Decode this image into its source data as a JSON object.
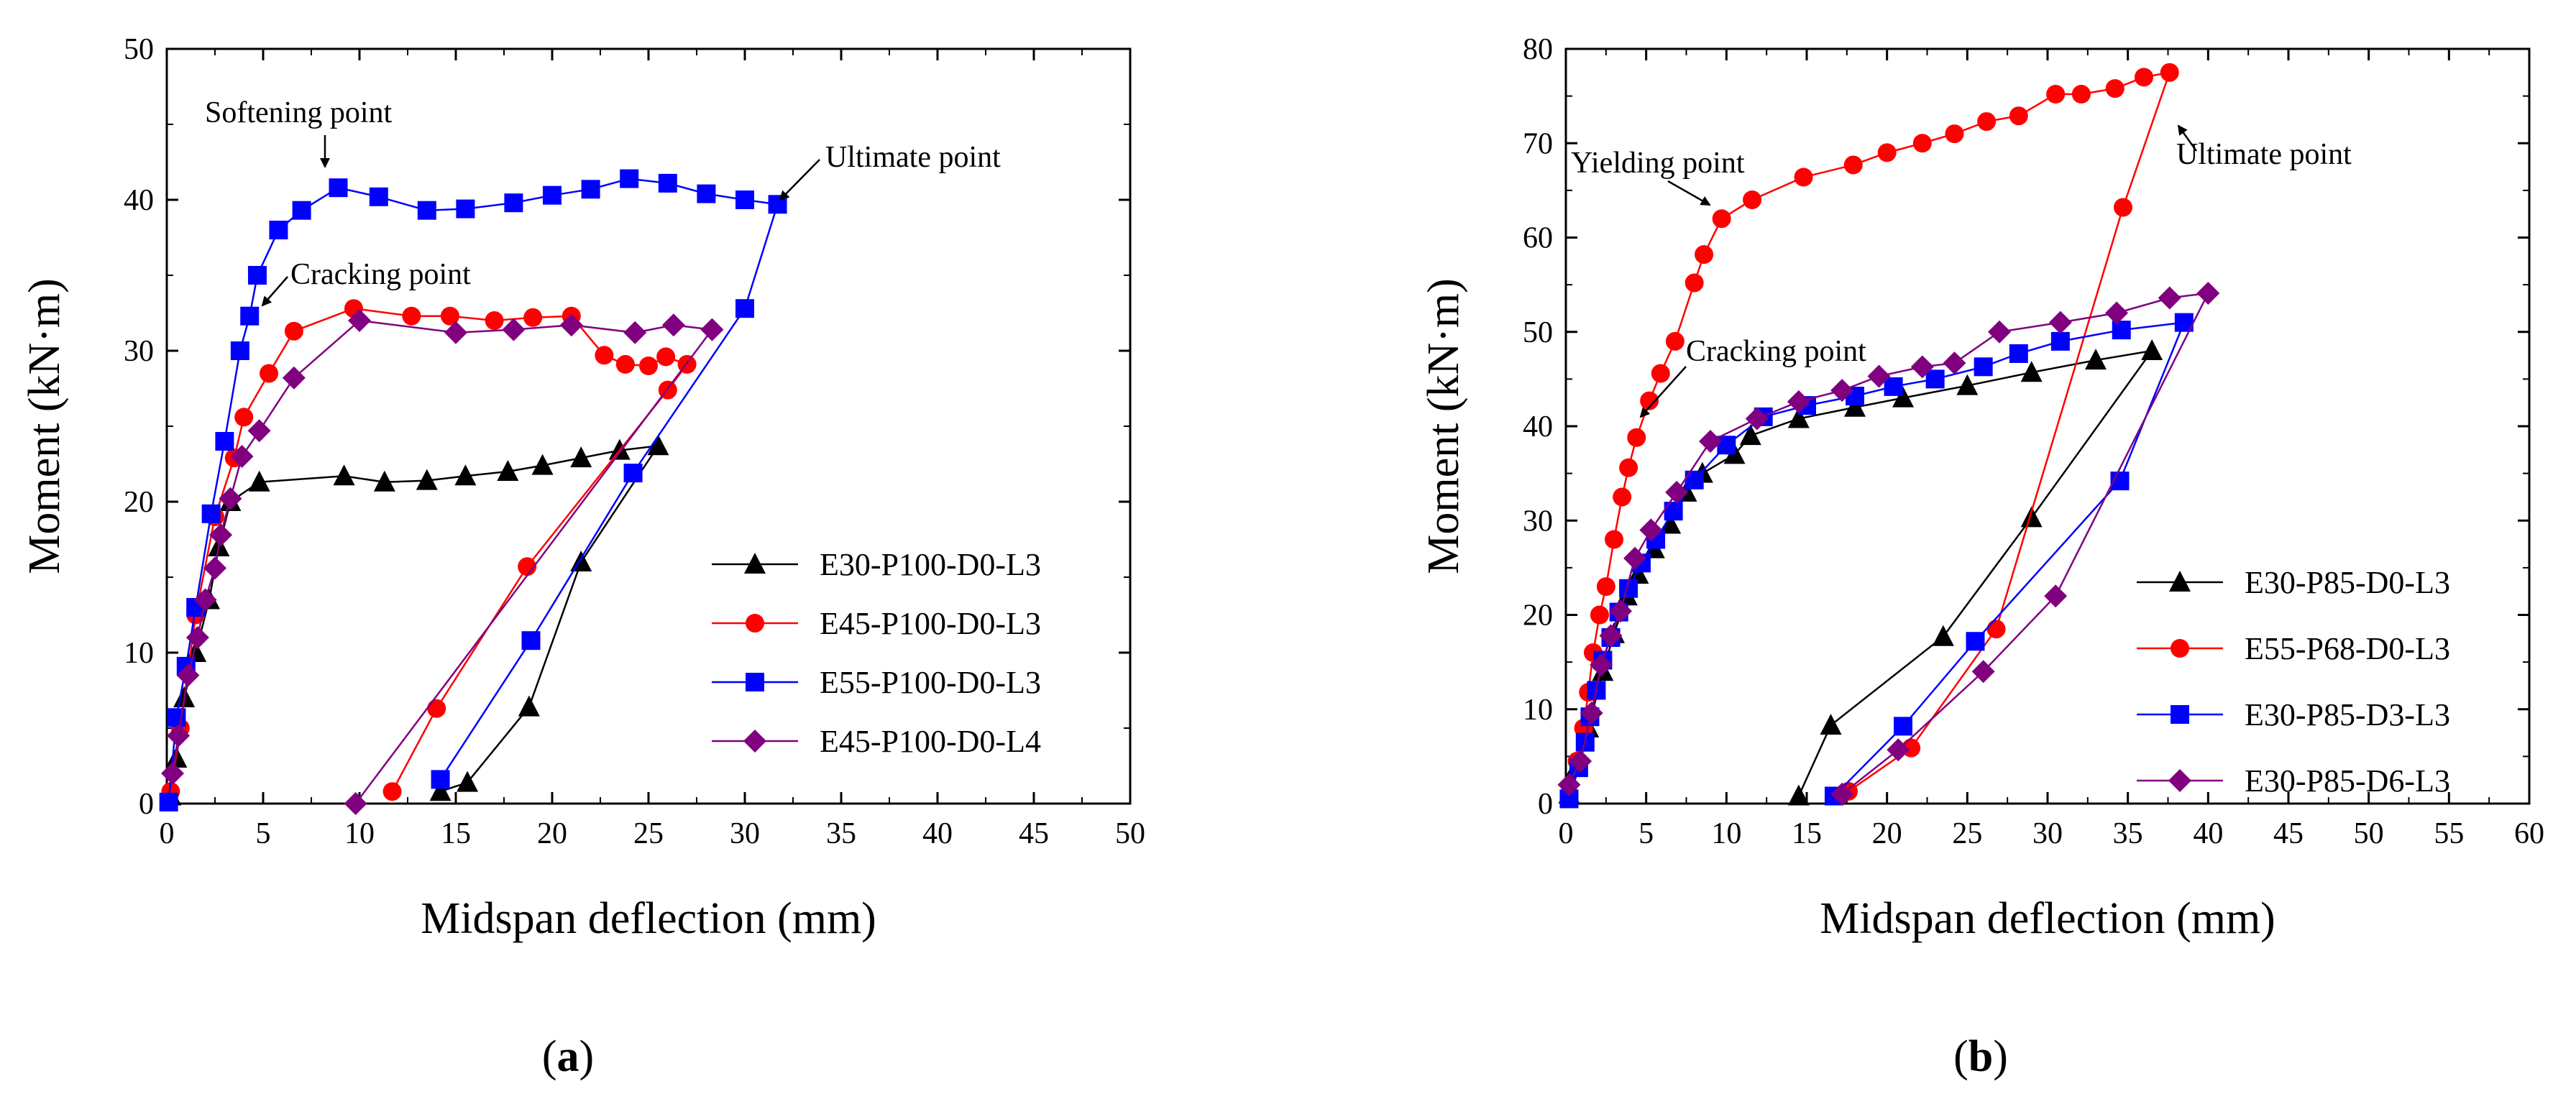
{
  "chart_data": [
    {
      "type": "line",
      "panel_label": "(a)",
      "xlabel": "Midspan deflection (mm)",
      "ylabel": "Moment (kN·m)",
      "xlim": [
        0,
        50
      ],
      "ylim": [
        0,
        50
      ],
      "xticks": [
        0,
        5,
        10,
        15,
        20,
        25,
        30,
        35,
        40,
        45,
        50
      ],
      "yticks": [
        0,
        10,
        20,
        30,
        40,
        50
      ],
      "legend_position": "bottom-right",
      "grid": false,
      "annotations": [
        {
          "text": "Softening point",
          "x": 9,
          "y": 40.8
        },
        {
          "text": "Ultimate point",
          "x": 31.5,
          "y": 39.7
        },
        {
          "text": "Cracking point",
          "x": 4.5,
          "y": 32.5
        }
      ],
      "series": [
        {
          "name": "E30-P100-D0-L3",
          "color": "#000000",
          "marker": "triangle",
          "points": [
            [
              0.2,
              0.5
            ],
            [
              0.5,
              3
            ],
            [
              0.9,
              7
            ],
            [
              1.5,
              10
            ],
            [
              2.2,
              13.5
            ],
            [
              2.7,
              17
            ],
            [
              3.3,
              20
            ],
            [
              4.8,
              21.3
            ],
            [
              9.2,
              21.7
            ],
            [
              11.3,
              21.3
            ],
            [
              13.5,
              21.4
            ],
            [
              15.5,
              21.7
            ],
            [
              17.7,
              22
            ],
            [
              19.5,
              22.4
            ],
            [
              21.5,
              22.9
            ],
            [
              23.5,
              23.4
            ],
            [
              25.5,
              23.7
            ],
            [
              21.5,
              16
            ],
            [
              18.8,
              6.4
            ],
            [
              15.6,
              1.4
            ],
            [
              14.2,
              0.8
            ]
          ]
        },
        {
          "name": "E45-P100-D0-L3",
          "color": "#ff0000",
          "marker": "circle",
          "points": [
            [
              0.2,
              0.8
            ],
            [
              0.7,
              5
            ],
            [
              1.5,
              12.5
            ],
            [
              2.5,
              19
            ],
            [
              3.5,
              22.9
            ],
            [
              4.0,
              25.6
            ],
            [
              5.3,
              28.5
            ],
            [
              6.6,
              31.3
            ],
            [
              9.7,
              32.8
            ],
            [
              12.7,
              32.3
            ],
            [
              14.7,
              32.3
            ],
            [
              17,
              32
            ],
            [
              19,
              32.2
            ],
            [
              21,
              32.3
            ],
            [
              22.7,
              29.7
            ],
            [
              23.8,
              29.1
            ],
            [
              25,
              29
            ],
            [
              25.9,
              29.6
            ],
            [
              27,
              29.1
            ],
            [
              26,
              27.4
            ],
            [
              18.7,
              15.7
            ],
            [
              14,
              6.3
            ],
            [
              11.7,
              0.8
            ]
          ]
        },
        {
          "name": "E55-P100-D0-L3",
          "color": "#0000ff",
          "marker": "square",
          "points": [
            [
              0.1,
              0.1
            ],
            [
              0.5,
              5.7
            ],
            [
              1.0,
              9.1
            ],
            [
              1.5,
              13
            ],
            [
              2.3,
              19.2
            ],
            [
              3.0,
              24
            ],
            [
              3.8,
              30
            ],
            [
              4.3,
              32.3
            ],
            [
              4.7,
              35
            ],
            [
              5.8,
              38
            ],
            [
              7,
              39.3
            ],
            [
              8.9,
              40.8
            ],
            [
              11,
              40.2
            ],
            [
              13.5,
              39.3
            ],
            [
              15.5,
              39.4
            ],
            [
              18,
              39.8
            ],
            [
              20,
              40.3
            ],
            [
              22,
              40.7
            ],
            [
              24,
              41.4
            ],
            [
              26,
              41.1
            ],
            [
              28,
              40.4
            ],
            [
              30,
              40
            ],
            [
              31.7,
              39.7
            ],
            [
              30,
              32.8
            ],
            [
              24.2,
              21.9
            ],
            [
              18.9,
              10.8
            ],
            [
              14.2,
              1.6
            ]
          ]
        },
        {
          "name": "E45-P100-D0-L4",
          "color": "#800080",
          "marker": "diamond",
          "points": [
            [
              0.3,
              2
            ],
            [
              0.6,
              4.5
            ],
            [
              1.1,
              8.5
            ],
            [
              1.6,
              11
            ],
            [
              2,
              13.5
            ],
            [
              2.5,
              15.6
            ],
            [
              2.8,
              17.8
            ],
            [
              3.3,
              20.2
            ],
            [
              3.9,
              23
            ],
            [
              4.8,
              24.7
            ],
            [
              6.6,
              28.2
            ],
            [
              10,
              32
            ],
            [
              15,
              31.2
            ],
            [
              18,
              31.4
            ],
            [
              21,
              31.7
            ],
            [
              24.3,
              31.2
            ],
            [
              26.3,
              31.7
            ],
            [
              28.3,
              31.4
            ],
            [
              9.8,
              0
            ]
          ]
        }
      ]
    },
    {
      "type": "line",
      "panel_label": "(b)",
      "xlabel": "Midspan deflection (mm)",
      "ylabel": "Moment (kN·m)",
      "xlim": [
        0,
        60
      ],
      "ylim": [
        0,
        80
      ],
      "xticks": [
        0,
        5,
        10,
        15,
        20,
        25,
        30,
        35,
        40,
        45,
        50,
        55,
        60
      ],
      "yticks": [
        0,
        10,
        20,
        30,
        40,
        50,
        60,
        70,
        80
      ],
      "legend_position": "bottom-right",
      "grid": false,
      "annotations": [
        {
          "text": "Yielding point",
          "x": 9.5,
          "y": 62
        },
        {
          "text": "Ultimate point",
          "x": 37.5,
          "y": 77.5
        },
        {
          "text": "Cracking point",
          "x": 4.5,
          "y": 33
        }
      ],
      "series": [
        {
          "name": "E30-P85-D0-L3",
          "color": "#000000",
          "marker": "triangle",
          "points": [
            [
              0.2,
              1
            ],
            [
              0.7,
              4
            ],
            [
              1.4,
              8
            ],
            [
              2.3,
              14
            ],
            [
              3,
              18
            ],
            [
              3.8,
              22
            ],
            [
              4.5,
              24.3
            ],
            [
              5.5,
              27
            ],
            [
              6.5,
              29.6
            ],
            [
              7.5,
              33
            ],
            [
              8.5,
              35
            ],
            [
              10.5,
              37
            ],
            [
              11.5,
              39
            ],
            [
              14.5,
              40.8
            ],
            [
              18,
              42
            ],
            [
              21,
              43
            ],
            [
              25,
              44.3
            ],
            [
              29,
              45.7
            ],
            [
              33,
              47
            ],
            [
              36.5,
              48
            ],
            [
              29,
              30.3
            ],
            [
              23.5,
              17.7
            ],
            [
              16.5,
              8.3
            ],
            [
              14.5,
              0.8
            ]
          ]
        },
        {
          "name": "E55-P68-D0-L3",
          "color": "#ff0000",
          "marker": "circle",
          "points": [
            [
              0.2,
              1
            ],
            [
              0.7,
              4.5
            ],
            [
              1.1,
              8
            ],
            [
              1.4,
              11.8
            ],
            [
              1.7,
              16
            ],
            [
              2.1,
              20
            ],
            [
              2.5,
              23
            ],
            [
              3,
              28
            ],
            [
              3.5,
              32.5
            ],
            [
              3.9,
              35.6
            ],
            [
              4.4,
              38.8
            ],
            [
              5.2,
              42.7
            ],
            [
              5.9,
              45.6
            ],
            [
              6.8,
              49
            ],
            [
              8,
              55.2
            ],
            [
              8.6,
              58.2
            ],
            [
              9.7,
              62
            ],
            [
              11.6,
              64
            ],
            [
              14.8,
              66.4
            ],
            [
              17.9,
              67.7
            ],
            [
              20,
              69
            ],
            [
              22.2,
              70
            ],
            [
              24.2,
              71
            ],
            [
              26.2,
              72.3
            ],
            [
              28.2,
              72.9
            ],
            [
              30.5,
              75.2
            ],
            [
              32.1,
              75.2
            ],
            [
              34.2,
              75.8
            ],
            [
              36,
              77
            ],
            [
              37.6,
              77.5
            ],
            [
              34.7,
              63.2
            ],
            [
              26.8,
              18.5
            ],
            [
              21.5,
              5.9
            ],
            [
              17.6,
              1.3
            ]
          ]
        },
        {
          "name": "E30-P85-D3-L3",
          "color": "#0000ff",
          "marker": "square",
          "points": [
            [
              0.2,
              0.5
            ],
            [
              0.8,
              3.8
            ],
            [
              1.2,
              6.5
            ],
            [
              1.5,
              9.2
            ],
            [
              1.9,
              12
            ],
            [
              2.3,
              15.2
            ],
            [
              2.8,
              17.6
            ],
            [
              3.3,
              20.3
            ],
            [
              3.9,
              22.8
            ],
            [
              4.7,
              25.5
            ],
            [
              5.6,
              28
            ],
            [
              6.7,
              31
            ],
            [
              8,
              34.3
            ],
            [
              10,
              38
            ],
            [
              12.3,
              41
            ],
            [
              15,
              42.2
            ],
            [
              18,
              43.2
            ],
            [
              20.4,
              44.2
            ],
            [
              23,
              45
            ],
            [
              26,
              46.3
            ],
            [
              28.2,
              47.7
            ],
            [
              30.8,
              49
            ],
            [
              34.6,
              50.2
            ],
            [
              38.5,
              51
            ],
            [
              34.5,
              34.2
            ],
            [
              25.5,
              17.2
            ],
            [
              21,
              8.2
            ],
            [
              16.7,
              0.8
            ]
          ]
        },
        {
          "name": "E30-P85-D6-L3",
          "color": "#800080",
          "marker": "diamond",
          "points": [
            [
              0.2,
              2
            ],
            [
              0.9,
              4.5
            ],
            [
              1.6,
              9.6
            ],
            [
              2.2,
              14.7
            ],
            [
              2.8,
              17.8
            ],
            [
              3.4,
              20.4
            ],
            [
              4.3,
              26
            ],
            [
              5.3,
              29
            ],
            [
              6.9,
              33
            ],
            [
              9,
              38.4
            ],
            [
              11.9,
              40.8
            ],
            [
              14.5,
              42.6
            ],
            [
              17.2,
              43.8
            ],
            [
              19.5,
              45.3
            ],
            [
              22.2,
              46.3
            ],
            [
              24.2,
              46.7
            ],
            [
              27,
              50
            ],
            [
              30.8,
              51
            ],
            [
              34.3,
              52
            ],
            [
              37.6,
              53.6
            ],
            [
              40,
              54.1
            ],
            [
              30.5,
              22
            ],
            [
              26,
              14
            ],
            [
              20.7,
              5.7
            ],
            [
              17.2,
              1
            ]
          ]
        }
      ]
    }
  ]
}
